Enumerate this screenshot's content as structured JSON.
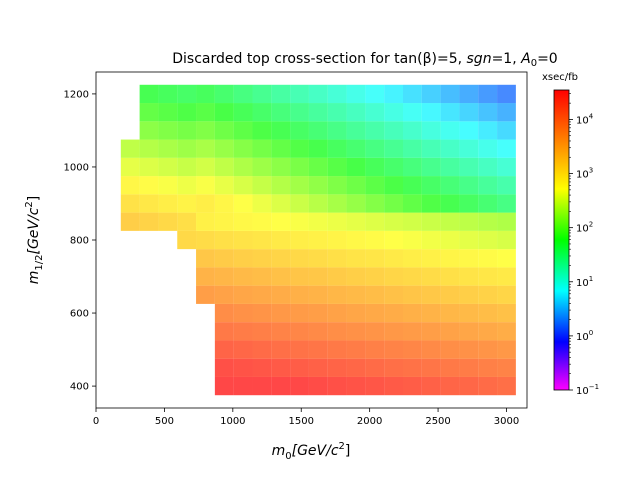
{
  "chart_data": {
    "type": "heatmap",
    "title_main": "Discarded top cross-section for tan(",
    "title_beta": "β",
    "title_mid": ")=5, ",
    "title_sgn": "sgn",
    "title_after_sgn": "=1, ",
    "title_a": "A",
    "title_a_sub": "0",
    "title_end": "=0",
    "xlabel_base": "m",
    "xlabel_sub": "0",
    "xlabel_units": "[GeV/c",
    "xlabel_pow": "2",
    "xlabel_close": "]",
    "ylabel_base": "m",
    "ylabel_sub": "1/2",
    "ylabel_units": "[GeV/c",
    "ylabel_pow": "2",
    "ylabel_close": "]",
    "colorbar_label": "xsec/fb",
    "xlim": [
      0,
      3150
    ],
    "ylim": [
      340,
      1260
    ],
    "x_ticks": [
      "0",
      "500",
      "1000",
      "1500",
      "2000",
      "2500",
      "3000"
    ],
    "y_ticks": [
      "400",
      "600",
      "800",
      "1000",
      "1200"
    ],
    "colorbar_scale": "log",
    "colorbar_range": [
      0.1,
      35000
    ],
    "colorbar_ticks": [
      {
        "base": "10",
        "exp": "−1",
        "value": 0.1
      },
      {
        "base": "10",
        "exp": "0",
        "value": 1
      },
      {
        "base": "10",
        "exp": "1",
        "value": 10
      },
      {
        "base": "10",
        "exp": "2",
        "value": 100
      },
      {
        "base": "10",
        "exp": "3",
        "value": 1000
      },
      {
        "base": "10",
        "exp": "4",
        "value": 10000
      }
    ],
    "grid": false
  }
}
